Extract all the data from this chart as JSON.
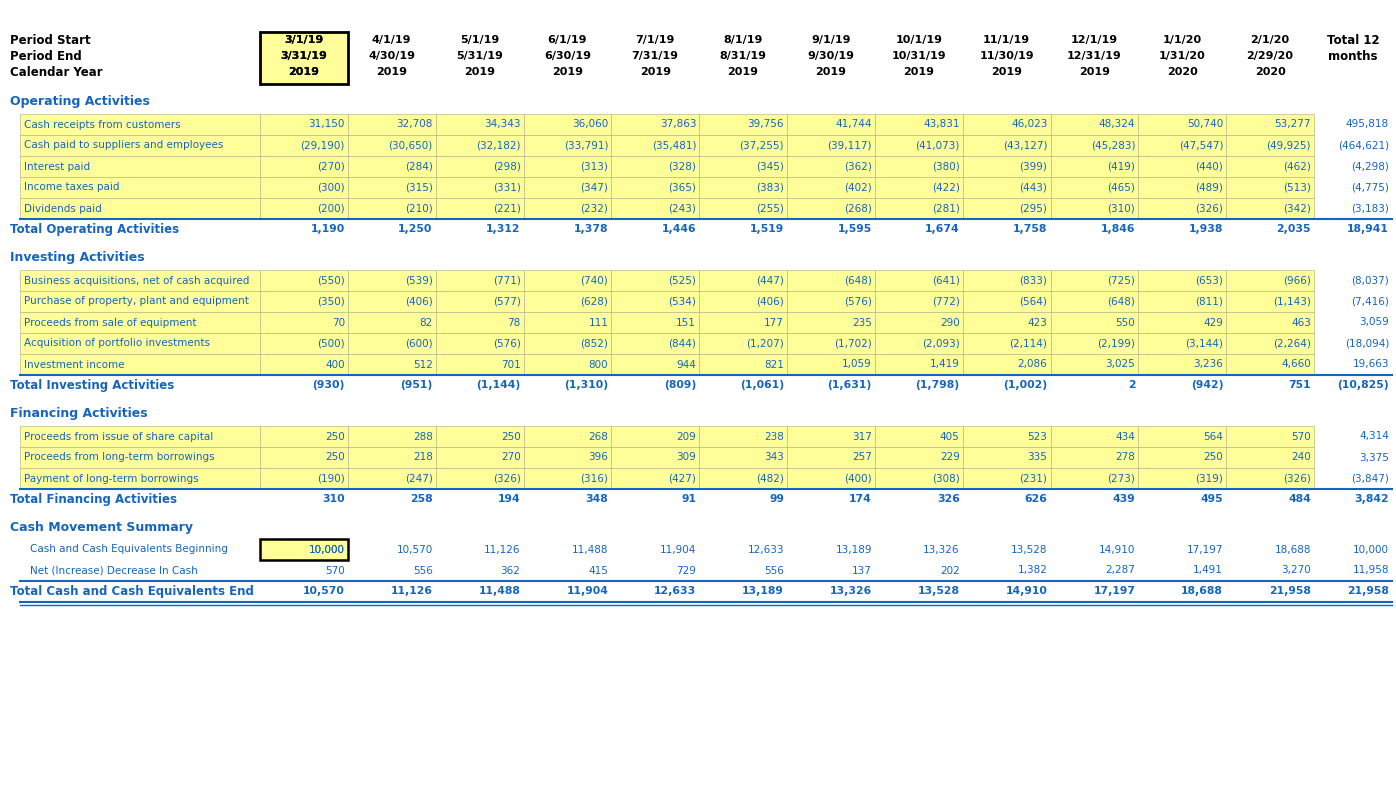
{
  "bg_color": "#ffffff",
  "cell_bg": "#fffffe",
  "yellow_bg": "#ffff99",
  "section_color": "#1565c0",
  "data_color": "#1565c0",
  "black": "#000000",
  "col_headers": {
    "period_start": [
      "3/1/19",
      "4/1/19",
      "5/1/19",
      "6/1/19",
      "7/1/19",
      "8/1/19",
      "9/1/19",
      "10/1/19",
      "11/1/19",
      "12/1/19",
      "1/1/20",
      "2/1/20"
    ],
    "period_end": [
      "3/31/19",
      "4/30/19",
      "5/31/19",
      "6/30/19",
      "7/31/19",
      "8/31/19",
      "9/30/19",
      "10/31/19",
      "11/30/19",
      "12/31/19",
      "1/31/20",
      "2/29/20"
    ],
    "cal_year": [
      "2019",
      "2019",
      "2019",
      "2019",
      "2019",
      "2019",
      "2019",
      "2019",
      "2019",
      "2019",
      "2020",
      "2020"
    ]
  },
  "rows": [
    {
      "label": "Operating Activities",
      "type": "section"
    },
    {
      "label": "Cash receipts from customers",
      "type": "data",
      "data": [
        "31,150",
        "32,708",
        "34,343",
        "36,060",
        "37,863",
        "39,756",
        "41,744",
        "43,831",
        "46,023",
        "48,324",
        "50,740",
        "53,277"
      ],
      "total": "495,818"
    },
    {
      "label": "Cash paid to suppliers and employees",
      "type": "data",
      "data": [
        "(29,190)",
        "(30,650)",
        "(32,182)",
        "(33,791)",
        "(35,481)",
        "(37,255)",
        "(39,117)",
        "(41,073)",
        "(43,127)",
        "(45,283)",
        "(47,547)",
        "(49,925)"
      ],
      "total": "(464,621)"
    },
    {
      "label": "Interest paid",
      "type": "data",
      "data": [
        "(270)",
        "(284)",
        "(298)",
        "(313)",
        "(328)",
        "(345)",
        "(362)",
        "(380)",
        "(399)",
        "(419)",
        "(440)",
        "(462)"
      ],
      "total": "(4,298)"
    },
    {
      "label": "Income taxes paid",
      "type": "data",
      "data": [
        "(300)",
        "(315)",
        "(331)",
        "(347)",
        "(365)",
        "(383)",
        "(402)",
        "(422)",
        "(443)",
        "(465)",
        "(489)",
        "(513)"
      ],
      "total": "(4,775)"
    },
    {
      "label": "Dividends paid",
      "type": "data",
      "data": [
        "(200)",
        "(210)",
        "(221)",
        "(232)",
        "(243)",
        "(255)",
        "(268)",
        "(281)",
        "(295)",
        "(310)",
        "(326)",
        "(342)"
      ],
      "total": "(3,183)"
    },
    {
      "label": "Total Operating Activities",
      "type": "total",
      "data": [
        "1,190",
        "1,250",
        "1,312",
        "1,378",
        "1,446",
        "1,519",
        "1,595",
        "1,674",
        "1,758",
        "1,846",
        "1,938",
        "2,035"
      ],
      "total": "18,941"
    },
    {
      "label": "Investing Activities",
      "type": "section"
    },
    {
      "label": "Business acquisitions, net of cash acquired",
      "type": "data",
      "data": [
        "(550)",
        "(539)",
        "(771)",
        "(740)",
        "(525)",
        "(447)",
        "(648)",
        "(641)",
        "(833)",
        "(725)",
        "(653)",
        "(966)"
      ],
      "total": "(8,037)"
    },
    {
      "label": "Purchase of property, plant and equipment",
      "type": "data",
      "data": [
        "(350)",
        "(406)",
        "(577)",
        "(628)",
        "(534)",
        "(406)",
        "(576)",
        "(772)",
        "(564)",
        "(648)",
        "(811)",
        "(1,143)"
      ],
      "total": "(7,416)"
    },
    {
      "label": "Proceeds from sale of equipment",
      "type": "data",
      "data": [
        "70",
        "82",
        "78",
        "111",
        "151",
        "177",
        "235",
        "290",
        "423",
        "550",
        "429",
        "463"
      ],
      "total": "3,059"
    },
    {
      "label": "Acquisition of portfolio investments",
      "type": "data",
      "data": [
        "(500)",
        "(600)",
        "(576)",
        "(852)",
        "(844)",
        "(1,207)",
        "(1,702)",
        "(2,093)",
        "(2,114)",
        "(2,199)",
        "(3,144)",
        "(2,264)"
      ],
      "total": "(18,094)"
    },
    {
      "label": "Investment income",
      "type": "data",
      "data": [
        "400",
        "512",
        "701",
        "800",
        "944",
        "821",
        "1,059",
        "1,419",
        "2,086",
        "3,025",
        "3,236",
        "4,660"
      ],
      "total": "19,663"
    },
    {
      "label": "Total Investing Activities",
      "type": "total",
      "data": [
        "(930)",
        "(951)",
        "(1,144)",
        "(1,310)",
        "(809)",
        "(1,061)",
        "(1,631)",
        "(1,798)",
        "(1,002)",
        "2",
        "(942)",
        "751"
      ],
      "total": "(10,825)"
    },
    {
      "label": "Financing Activities",
      "type": "section"
    },
    {
      "label": "Proceeds from issue of share capital",
      "type": "data",
      "data": [
        "250",
        "288",
        "250",
        "268",
        "209",
        "238",
        "317",
        "405",
        "523",
        "434",
        "564",
        "570"
      ],
      "total": "4,314"
    },
    {
      "label": "Proceeds from long-term borrowings",
      "type": "data",
      "data": [
        "250",
        "218",
        "270",
        "396",
        "309",
        "343",
        "257",
        "229",
        "335",
        "278",
        "250",
        "240"
      ],
      "total": "3,375"
    },
    {
      "label": "Payment of long-term borrowings",
      "type": "data",
      "data": [
        "(190)",
        "(247)",
        "(326)",
        "(316)",
        "(427)",
        "(482)",
        "(400)",
        "(308)",
        "(231)",
        "(273)",
        "(319)",
        "(326)"
      ],
      "total": "(3,847)"
    },
    {
      "label": "Total Financing Activities",
      "type": "total",
      "data": [
        "310",
        "258",
        "194",
        "348",
        "91",
        "99",
        "174",
        "326",
        "626",
        "439",
        "495",
        "484"
      ],
      "total": "3,842"
    },
    {
      "label": "Cash Movement Summary",
      "type": "section2"
    },
    {
      "label": "Cash and Cash Equivalents Beginning",
      "type": "cash_box",
      "data": [
        "10,000",
        "10,570",
        "11,126",
        "11,488",
        "11,904",
        "12,633",
        "13,189",
        "13,326",
        "13,528",
        "14,910",
        "17,197",
        "18,688"
      ],
      "total": "10,000"
    },
    {
      "label": "Net (Increase) Decrease In Cash",
      "type": "cash",
      "data": [
        "570",
        "556",
        "362",
        "415",
        "729",
        "556",
        "137",
        "202",
        "1,382",
        "2,287",
        "1,491",
        "3,270"
      ],
      "total": "11,958"
    },
    {
      "label": "Total Cash and Cash Equivalents End",
      "type": "total2",
      "data": [
        "10,570",
        "11,126",
        "11,488",
        "11,904",
        "12,633",
        "13,189",
        "13,326",
        "13,528",
        "14,910",
        "17,197",
        "18,688",
        "21,958"
      ],
      "total": "21,958"
    }
  ]
}
